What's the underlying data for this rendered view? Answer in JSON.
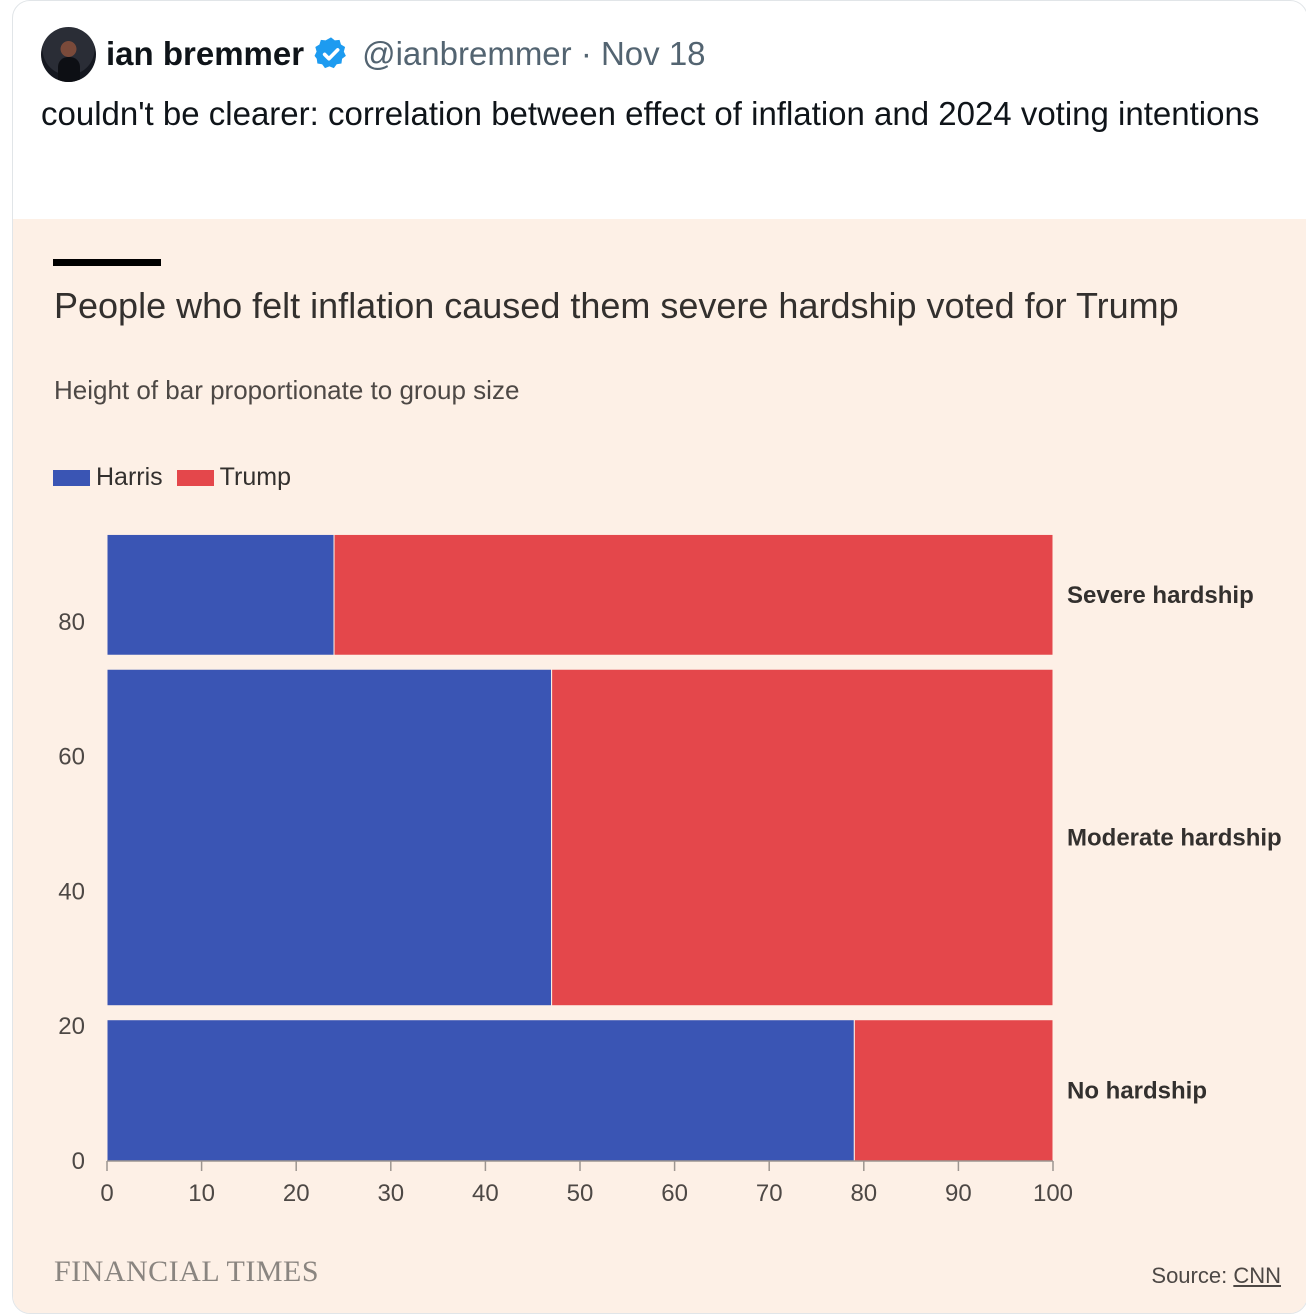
{
  "tweet": {
    "display_name": "ian bremmer",
    "handle_date": "@ianbremmer · Nov 18",
    "text": "couldn't be clearer: correlation between effect of inflation and 2024 voting intentions",
    "avatar_icon": "profile-photo",
    "verified_icon": "verified-badge-icon",
    "verified_color": "#1d9bf0"
  },
  "figure": {
    "publisher": "FINANCIAL TIMES",
    "source_label": "Source: ",
    "source_name": "CNN"
  },
  "chart_data": {
    "type": "bar",
    "variant": "marimekko",
    "title": "People who felt inflation caused them severe hardship voted for Trump",
    "subtitle": "Height of bar proportionate to group size",
    "legend": [
      {
        "name": "Harris",
        "color": "#3a55b4"
      },
      {
        "name": "Trump",
        "color": "#e4474b"
      }
    ],
    "legend_position": "top-left",
    "categories": [
      "No hardship",
      "Moderate hardship",
      "Severe hardship"
    ],
    "group_size": [
      22,
      52,
      20
    ],
    "series": [
      {
        "name": "Harris",
        "values": [
          79,
          47,
          24
        ]
      },
      {
        "name": "Trump",
        "values": [
          21,
          53,
          76
        ]
      }
    ],
    "xlim": [
      0,
      100
    ],
    "x_ticks": [
      "0",
      "10",
      "20",
      "30",
      "40",
      "50",
      "60",
      "70",
      "80",
      "90",
      "100"
    ],
    "ylim": [
      0,
      100
    ],
    "y_ticks": [
      "0",
      "20",
      "40",
      "60",
      "80"
    ],
    "grid": false
  }
}
